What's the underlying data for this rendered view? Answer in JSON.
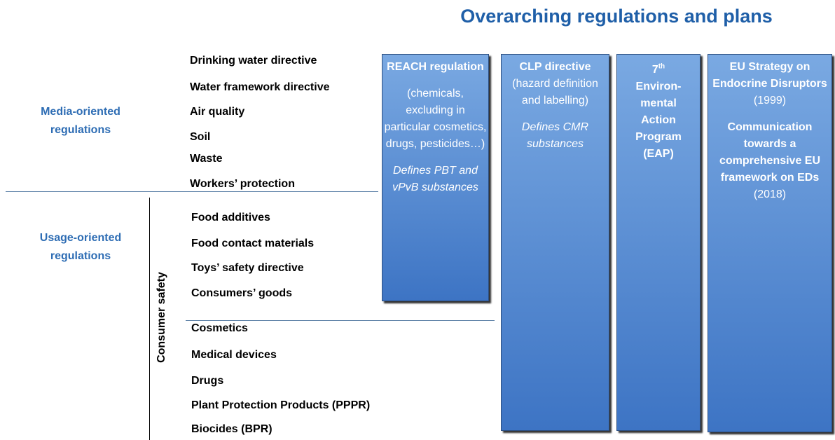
{
  "title": "Overarching regulations and plans",
  "groups": {
    "media": "Media-oriented regulations",
    "usage": "Usage-oriented regulations"
  },
  "media_items": [
    "Drinking water directive",
    "Water framework directive",
    "Air quality",
    "Soil",
    "Waste",
    "Workers’ protection"
  ],
  "consumer_safety": "Consumer safety",
  "consumer_items": [
    "Food additives",
    "Food contact materials",
    "Toys’ safety directive",
    "Consumers’ goods"
  ],
  "other_items": [
    "Cosmetics",
    "Medical devices",
    "Drugs",
    "Plant Protection Products (PPPR)",
    "Biocides (BPR)"
  ],
  "boxes": {
    "reach": {
      "title": "REACH regulation",
      "scope": "(chemicals, excluding in particular cosmetics, drugs, pesticides…)",
      "defines": "Defines PBT and vPvB substances"
    },
    "clp": {
      "title": "CLP directive",
      "scope": "(hazard definition and labelling)",
      "defines": "Defines CMR substances"
    },
    "eap": {
      "number": "7",
      "suffix": "th",
      "title": "Environ-mental Action Program (EAP)"
    },
    "eu": {
      "title1": "EU Strategy on Endocrine Disruptors",
      "year1": "(1999)",
      "title2": "Communication towards a comprehensive EU framework on EDs",
      "year2": "(2018)"
    }
  }
}
